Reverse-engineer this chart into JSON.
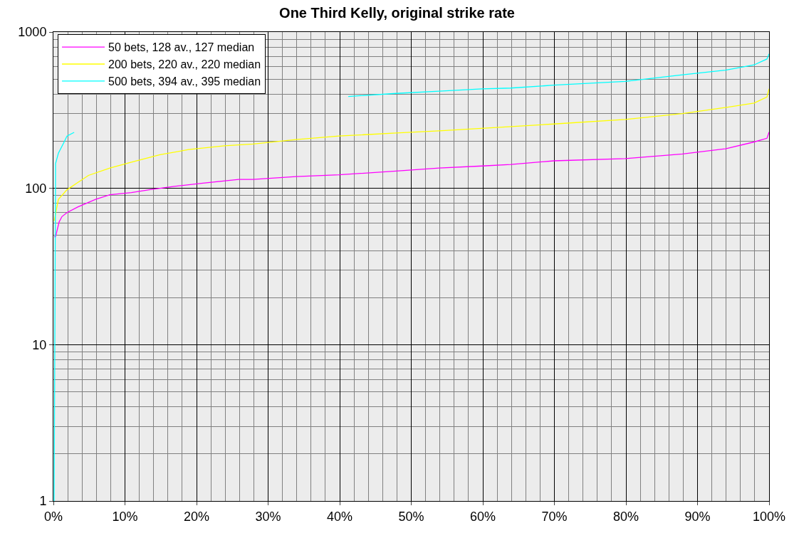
{
  "chart_data": {
    "type": "line",
    "title": "One Third Kelly, original strike rate",
    "series": [
      {
        "name": "50 bets, 128 av., 127 median",
        "color": "#ff00ff",
        "x": [
          0.1,
          0.3,
          0.8,
          1.2,
          1.9,
          3.4,
          5.9,
          7.9,
          10.9,
          13.4,
          16.9,
          20.9,
          25.9,
          27.9,
          33.9,
          39.9,
          47.9,
          53.9,
          59.9,
          63.9,
          69.9,
          79.9,
          87.9,
          93.9,
          97.9,
          99.7,
          100
        ],
        "values": [
          49,
          49,
          61,
          66,
          70,
          76,
          85,
          91,
          94,
          98,
          103,
          108,
          114,
          114,
          119,
          122,
          129,
          135,
          139,
          142,
          150,
          155,
          166,
          179,
          198,
          209,
          229
        ]
      },
      {
        "name": "200 bets, 220 av., 220 median",
        "color": "#ffff00",
        "x": [
          0.1,
          0.7,
          1.9,
          3.4,
          4.9,
          7.9,
          10.9,
          14.9,
          18.9,
          23.9,
          27.9,
          33.9,
          39.9,
          47.9,
          53.9,
          61.9,
          69.9,
          79.9,
          87.9,
          93.9,
          97.9,
          99.7,
          100
        ],
        "values": [
          62,
          85,
          98,
          109,
          121,
          135,
          147,
          164,
          177,
          187,
          192,
          205,
          216,
          226,
          233,
          245,
          258,
          276,
          301,
          329,
          351,
          384,
          433
        ]
      },
      {
        "name": "500 bets, 394 av., 395 median",
        "color": "#00ffff",
        "x": [
          0.1,
          0.3,
          0.7,
          1.4,
          1.9,
          2.9,
          20,
          41.2,
          47.9,
          53.9,
          59.9,
          63.9,
          69.9,
          79.9,
          87.9,
          93.9,
          97.9,
          99.7,
          100
        ],
        "values": [
          1,
          144,
          168,
          194,
          216,
          228,
          null,
          387,
          405,
          418,
          433,
          438,
          457,
          483,
          533,
          570,
          616,
          672,
          725
        ]
      }
    ],
    "xlim": [
      0,
      100
    ],
    "xticks": [
      {
        "value": 0,
        "label": "0%"
      },
      {
        "value": 10,
        "label": "10%"
      },
      {
        "value": 20,
        "label": "20%"
      },
      {
        "value": 30,
        "label": "30%"
      },
      {
        "value": 40,
        "label": "40%"
      },
      {
        "value": 50,
        "label": "50%"
      },
      {
        "value": 60,
        "label": "60%"
      },
      {
        "value": 70,
        "label": "70%"
      },
      {
        "value": 80,
        "label": "80%"
      },
      {
        "value": 90,
        "label": "90%"
      },
      {
        "value": 100,
        "label": "100%"
      }
    ],
    "ylim": [
      1,
      1000
    ],
    "yticks": [
      1,
      10,
      100,
      1000
    ],
    "log": "y",
    "grid": true,
    "legend": "top left",
    "marker": "none",
    "line_style": "solid"
  }
}
